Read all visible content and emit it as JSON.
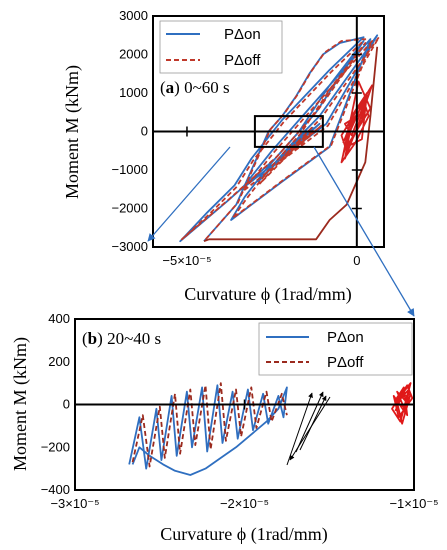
{
  "chart_data": [
    {
      "type": "line",
      "panel_label_bold": "a",
      "panel_label_rest": " 0~60 s",
      "xlabel": "Curvature ϕ (1rad/mm)",
      "ylabel": "Moment M (kNm)",
      "xlim": [
        -6e-05,
        8e-06
      ],
      "ylim": [
        -3000,
        3000
      ],
      "xticks": [
        {
          "v": -5e-05,
          "label": "−5×10⁻⁵"
        },
        {
          "v": 0,
          "label": "0"
        }
      ],
      "yticks": [
        {
          "v": 3000,
          "label": "3000"
        },
        {
          "v": 2000,
          "label": "2000"
        },
        {
          "v": 1000,
          "label": "1000"
        },
        {
          "v": 0,
          "label": "0"
        },
        {
          "v": -1000,
          "label": "−1000"
        },
        {
          "v": -2000,
          "label": "−2000"
        },
        {
          "v": -3000,
          "label": "−3000"
        }
      ],
      "grid": false,
      "legend_position": "top-left",
      "zoom_box": {
        "x": [
          -3e-05,
          -1e-05
        ],
        "y": [
          -400,
          400
        ]
      },
      "series": [
        {
          "name": "PΔon",
          "color": "#2f6fc0",
          "dash": "solid",
          "x": [
            -4.5e-05,
            -3.55e-05,
            -3.2e-05,
            -2.9e-05,
            -2.6e-05,
            -2.2e-05,
            -1.8e-05,
            -1.4e-05,
            -1e-05,
            -5e-06,
            2e-06,
            -8e-06,
            -2.2e-05,
            -3.1e-05,
            -3.6e-05,
            -4.4e-05,
            -5.2e-05,
            -3.8e-05,
            -2.4e-05,
            -1.2e-05,
            2e-06,
            -8e-06,
            -1.7e-05,
            -2.6e-05,
            -3.3e-05,
            -3.7e-05,
            -2.2e-05,
            -8e-06,
            4e-06,
            -1.4e-05,
            -2.5e-05,
            -3.4e-05,
            -2.1e-05,
            -9e-06,
            6e-06,
            -1.1e-05,
            -2.1e-05,
            -2.9e-05,
            -1.9e-05,
            -1.1e-05,
            -1.6e-05,
            -2.4e-05,
            -1.9e-05,
            -1.3e-05,
            -1.9e-05,
            -1.6e-05,
            -2.2e-05,
            -1.4e-05,
            -1.8e-05
          ],
          "y": [
            -2850,
            -1900,
            -1200,
            -600,
            0,
            400,
            900,
            1500,
            2000,
            2300,
            2450,
            1600,
            300,
            -700,
            -1400,
            -2100,
            -2850,
            -1800,
            -700,
            500,
            2350,
            1200,
            0,
            -900,
            -1700,
            -2300,
            -1300,
            -400,
            2400,
            600,
            -500,
            -1500,
            -600,
            200,
            2500,
            400,
            -500,
            -1300,
            -400,
            200,
            -200,
            -800,
            -300,
            100,
            -400,
            -100,
            -600,
            0,
            -300
          ]
        },
        {
          "name": "PΔoff",
          "color": "#c0392b",
          "dash": "5,3",
          "x": [
            -4.45e-05,
            -3.5e-05,
            -3.15e-05,
            -2.85e-05,
            -2.55e-05,
            -2.15e-05,
            -1.75e-05,
            -1.35e-05,
            -9.5e-06,
            -4.5e-06,
            2.5e-06,
            -7.5e-06,
            -2.15e-05,
            -3.05e-05,
            -3.55e-05,
            -4.35e-05,
            -5.15e-05,
            -3.75e-05,
            -2.35e-05,
            -1.15e-05,
            2.5e-06,
            -7.5e-06,
            -1.65e-05,
            -2.55e-05,
            -3.25e-05,
            -3.65e-05,
            -2.15e-05,
            -7.5e-06,
            4.5e-06,
            -1.35e-05,
            -2.45e-05,
            -3.35e-05,
            -2.05e-05,
            -8.5e-06,
            6.5e-06,
            -1.05e-05,
            -2.05e-05,
            -2.85e-05,
            -1.85e-05,
            -1.05e-05,
            -1.55e-05,
            -2.35e-05,
            -1.85e-05,
            -1.25e-05,
            -1.85e-05,
            -1.55e-05,
            -2.15e-05,
            -1.35e-05,
            -1.75e-05
          ],
          "y": [
            -2800,
            -1850,
            -1150,
            -550,
            50,
            450,
            950,
            1550,
            2050,
            2350,
            2400,
            1550,
            250,
            -750,
            -1450,
            -2150,
            -2800,
            -1750,
            -650,
            550,
            2300,
            1150,
            -50,
            -950,
            -1750,
            -2250,
            -1250,
            -350,
            2350,
            550,
            -550,
            -1550,
            -650,
            150,
            2450,
            350,
            -550,
            -1350,
            -450,
            150,
            -250,
            -850,
            -350,
            50,
            -450,
            -150,
            -650,
            -50,
            -350
          ]
        },
        {
          "name": "",
          "color": "#d62020",
          "dash": "solid",
          "x": [
            -4e-06,
            -5e-07,
            3e-06,
            1.5e-06,
            -3e-06,
            -4.5e-06,
            1e-06,
            4.5e-06,
            5e-07,
            -3.5e-06,
            -2e-06,
            2e-06,
            3.5e-06,
            -5e-07,
            -4.5e-06,
            -1.5e-06,
            3e-06,
            1.5e-06,
            -3e-06,
            4e-06,
            5e-07,
            -4e-06,
            -1e-06,
            2.5e-06,
            -1.5e-06,
            -3.5e-06,
            2e-06
          ],
          "y": [
            -300,
            500,
            900,
            300,
            -500,
            -100,
            700,
            1200,
            200,
            -700,
            0,
            800,
            400,
            -300,
            -800,
            400,
            1000,
            -200,
            -400,
            600,
            1300,
            -600,
            300,
            800,
            -100,
            200,
            500
          ]
        },
        {
          "name": "",
          "color": "#9b2a1e",
          "dash": "solid",
          "x": [
            -4.5e-05,
            -4.35e-05,
            -1.2e-05,
            -8e-06,
            -3e-06,
            2.5e-06,
            4e-06,
            6e-06
          ],
          "y": [
            -2850,
            -2800,
            -2800,
            -2300,
            -1900,
            -800,
            400,
            2200
          ]
        }
      ]
    },
    {
      "type": "line",
      "panel_label_bold": "b",
      "panel_label_rest": " 20~40 s",
      "xlabel": "Curvature ϕ (1rad/mm)",
      "ylabel": "Moment M (kNm)",
      "xlim": [
        -3e-05,
        -1e-05
      ],
      "ylim": [
        -400,
        400
      ],
      "xticks": [
        {
          "v": -3e-05,
          "label": "−3×10⁻⁵"
        },
        {
          "v": -2e-05,
          "label": "−2×10⁻⁵"
        },
        {
          "v": -1e-05,
          "label": "−1×10⁻⁵"
        }
      ],
      "yticks": [
        {
          "v": 400,
          "label": "400"
        },
        {
          "v": 200,
          "label": "200"
        },
        {
          "v": 0,
          "label": "0"
        },
        {
          "v": -200,
          "label": "−200"
        },
        {
          "v": -400,
          "label": "−400"
        }
      ],
      "grid": false,
      "legend_position": "top-right",
      "series": [
        {
          "name": "PΔon",
          "color": "#2f6fc0",
          "dash": "solid",
          "x": [
            -2.68e-05,
            -2.62e-05,
            -2.58e-05,
            -2.52e-05,
            -2.49e-05,
            -2.43e-05,
            -2.4e-05,
            -2.34e-05,
            -2.31e-05,
            -2.25e-05,
            -2.22e-05,
            -2.16e-05,
            -2.13e-05,
            -2.07e-05,
            -2.04e-05,
            -1.98e-05,
            -1.95e-05,
            -1.89e-05,
            -1.86e-05,
            -1.8e-05,
            -1.77e-05,
            -1.75e-05,
            -1.8e-05,
            -1.87e-05,
            -1.96e-05,
            -2.05e-05,
            -2.14e-05,
            -2.23e-05,
            -2.32e-05,
            -2.41e-05,
            -2.48e-05,
            -2.56e-05,
            -2.62e-05,
            -2.66e-05
          ],
          "y": [
            -280,
            -60,
            -300,
            -20,
            -260,
            40,
            -240,
            60,
            -200,
            80,
            -220,
            90,
            -180,
            60,
            -160,
            70,
            -120,
            50,
            -90,
            40,
            -60,
            80,
            -20,
            -80,
            -140,
            -200,
            -250,
            -300,
            -330,
            -310,
            -280,
            -240,
            -200,
            -280
          ]
        },
        {
          "name": "PΔoff",
          "color": "#9b2a1e",
          "dash": "5,3",
          "x": [
            -2.66e-05,
            -2.6e-05,
            -2.56e-05,
            -2.5e-05,
            -2.47e-05,
            -2.41e-05,
            -2.38e-05,
            -2.32e-05,
            -2.29e-05,
            -2.23e-05,
            -2.2e-05,
            -2.14e-05,
            -2.11e-05,
            -2.05e-05,
            -2.02e-05,
            -1.96e-05,
            -1.93e-05,
            -1.87e-05,
            -1.84e-05,
            -1.78e-05,
            -1.75e-05
          ],
          "y": [
            -270,
            -50,
            -290,
            -10,
            -250,
            50,
            -230,
            70,
            -190,
            90,
            -210,
            100,
            -170,
            70,
            -150,
            80,
            -110,
            60,
            -80,
            50,
            -50
          ]
        },
        {
          "name": "",
          "color": "#e01818",
          "dash": "solid",
          "x": [
            -1.11e-05,
            -1.06e-05,
            -1.02e-05,
            -1.08e-05,
            -1.13e-05,
            -1.04e-05,
            -1.01e-05,
            -1.09e-05,
            -1.12e-05,
            -1.05e-05,
            -1.03e-05,
            -1.1e-05,
            -1.07e-05,
            -1.02e-05,
            -1.11e-05,
            -1.06e-05,
            -1.04e-05,
            -1.1e-05,
            -1.03e-05,
            -1.08e-05
          ],
          "y": [
            -30,
            60,
            100,
            -80,
            -20,
            90,
            30,
            -60,
            40,
            -40,
            70,
            10,
            -90,
            50,
            20,
            80,
            -50,
            60,
            0,
            -10
          ]
        }
      ]
    }
  ]
}
